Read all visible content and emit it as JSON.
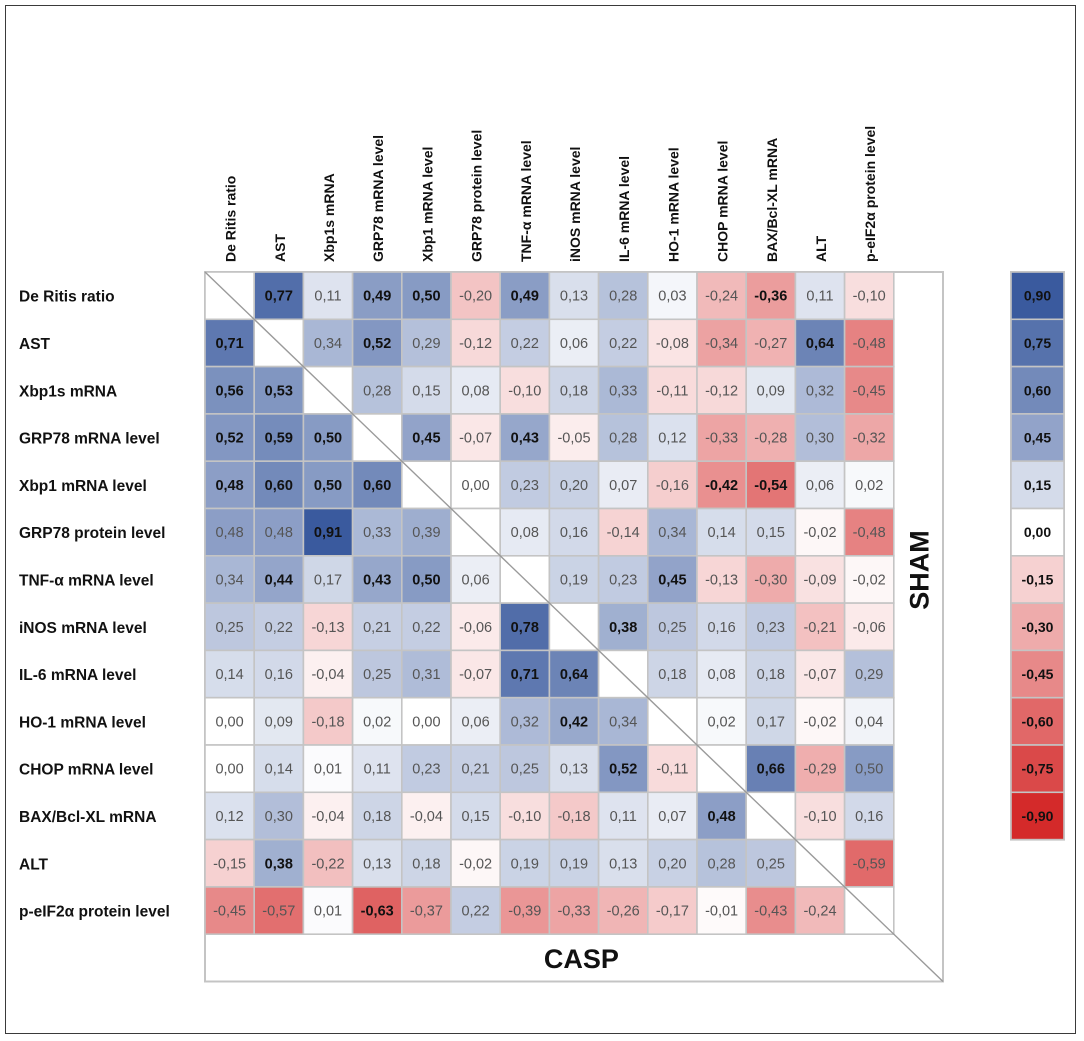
{
  "chart_data": {
    "type": "heatmap",
    "title": "",
    "row_labels": [
      "De Ritis ratio",
      "AST",
      "Xbp1s mRNA",
      "GRP78 mRNA level",
      "Xbp1 mRNA level",
      "GRP78 protein level",
      "TNF-α mRNA level",
      "iNOS mRNA level",
      "IL-6 mRNA level",
      "HO-1 mRNA level",
      "CHOP mRNA level",
      "BAX/Bcl-XL mRNA",
      "ALT",
      "p-eIF2α protein level"
    ],
    "col_labels": [
      "De Ritis ratio",
      "AST",
      "Xbp1s mRNA",
      "GRP78 mRNA level",
      "Xbp1 mRNA level",
      "GRP78 protein level",
      "TNF-α mRNA level",
      "iNOS mRNA level",
      "IL-6 mRNA level",
      "HO-1 mRNA level",
      "CHOP mRNA level",
      "BAX/Bcl-XL mRNA",
      "ALT",
      "p-eIF2α protein level"
    ],
    "values": [
      [
        null,
        "0,77",
        "0,11",
        "0,49",
        "0,50",
        "-0,20",
        "0,49",
        "0,13",
        "0,28",
        "0,03",
        "-0,24",
        "-0,36",
        "0,11",
        "-0,10"
      ],
      [
        "0,71",
        null,
        "0,34",
        "0,52",
        "0,29",
        "-0,12",
        "0,22",
        "0,06",
        "0,22",
        "-0,08",
        "-0,34",
        "-0,27",
        "0,64",
        "-0,48"
      ],
      [
        "0,56",
        "0,53",
        null,
        "0,28",
        "0,15",
        "0,08",
        "-0,10",
        "0,18",
        "0,33",
        "-0,11",
        "-0,12",
        "0,09",
        "0,32",
        "-0,45"
      ],
      [
        "0,52",
        "0,59",
        "0,50",
        null,
        "0,45",
        "-0,07",
        "0,43",
        "-0,05",
        "0,28",
        "0,12",
        "-0,33",
        "-0,28",
        "0,30",
        "-0,32"
      ],
      [
        "0,48",
        "0,60",
        "0,50",
        "0,60",
        null,
        "0,00",
        "0,23",
        "0,20",
        "0,07",
        "-0,16",
        "-0,42",
        "-0,54",
        "0,06",
        "0,02"
      ],
      [
        "0,48",
        "0,48",
        "0,91",
        "0,33",
        "0,39",
        null,
        "0,08",
        "0,16",
        "-0,14",
        "0,34",
        "0,14",
        "0,15",
        "-0,02",
        "-0,48"
      ],
      [
        "0,34",
        "0,44",
        "0,17",
        "0,43",
        "0,50",
        "0,06",
        null,
        "0,19",
        "0,23",
        "0,45",
        "-0,13",
        "-0,30",
        "-0,09",
        "-0,02"
      ],
      [
        "0,25",
        "0,22",
        "-0,13",
        "0,21",
        "0,22",
        "-0,06",
        "0,78",
        null,
        "0,38",
        "0,25",
        "0,16",
        "0,23",
        "-0,21",
        "-0,06"
      ],
      [
        "0,14",
        "0,16",
        "-0,04",
        "0,25",
        "0,31",
        "-0,07",
        "0,71",
        "0,64",
        null,
        "0,18",
        "0,08",
        "0,18",
        "-0,07",
        "0,29"
      ],
      [
        "0,00",
        "0,09",
        "-0,18",
        "0,02",
        "0,00",
        "0,06",
        "0,32",
        "0,42",
        "0,34",
        null,
        "0,02",
        "0,17",
        "-0,02",
        "0,04"
      ],
      [
        "0,00",
        "0,14",
        "0,01",
        "0,11",
        "0,23",
        "0,21",
        "0,25",
        "0,13",
        "0,52",
        "-0,11",
        null,
        "0,66",
        "-0,29",
        "0,50"
      ],
      [
        "0,12",
        "0,30",
        "-0,04",
        "0,18",
        "-0,04",
        "0,15",
        "-0,10",
        "-0,18",
        "0,11",
        "0,07",
        "0,48",
        null,
        "-0,10",
        "0,16"
      ],
      [
        "-0,15",
        "0,38",
        "-0,22",
        "0,13",
        "0,18",
        "-0,02",
        "0,19",
        "0,19",
        "0,13",
        "0,20",
        "0,28",
        "0,25",
        null,
        "-0,59"
      ],
      [
        "-0,45",
        "-0,57",
        "0,01",
        "-0,63",
        "-0,37",
        "0,22",
        "-0,39",
        "-0,33",
        "-0,26",
        "-0,17",
        "-0,01",
        "-0,43",
        "-0,24",
        null
      ]
    ],
    "bold": [
      [
        0,
        1
      ],
      [
        0,
        3
      ],
      [
        0,
        4
      ],
      [
        0,
        6
      ],
      [
        0,
        11
      ],
      [
        1,
        0
      ],
      [
        1,
        3
      ],
      [
        1,
        12
      ],
      [
        2,
        0
      ],
      [
        2,
        1
      ],
      [
        3,
        0
      ],
      [
        3,
        1
      ],
      [
        3,
        2
      ],
      [
        3,
        4
      ],
      [
        3,
        6
      ],
      [
        4,
        0
      ],
      [
        4,
        1
      ],
      [
        4,
        2
      ],
      [
        4,
        3
      ],
      [
        4,
        10
      ],
      [
        4,
        11
      ],
      [
        5,
        2
      ],
      [
        6,
        1
      ],
      [
        6,
        3
      ],
      [
        6,
        4
      ],
      [
        6,
        9
      ],
      [
        7,
        6
      ],
      [
        7,
        8
      ],
      [
        8,
        6
      ],
      [
        8,
        7
      ],
      [
        9,
        7
      ],
      [
        10,
        8
      ],
      [
        10,
        11
      ],
      [
        11,
        10
      ],
      [
        12,
        1
      ],
      [
        13,
        3
      ]
    ],
    "upper_triangle_label": "SHAM",
    "lower_triangle_label": "CASP",
    "legend": [
      "0,90",
      "0,75",
      "0,60",
      "0,45",
      "0,15",
      "0,00",
      "-0,15",
      "-0,30",
      "-0,45",
      "-0,60",
      "-0,75",
      "-0,90"
    ],
    "colors": {
      "positive": "#3a5a9e",
      "negative": "#d42a2a",
      "neutral": "#ffffff",
      "grid": "#c4c4c4",
      "diagonal": "#9a9a9a"
    }
  }
}
